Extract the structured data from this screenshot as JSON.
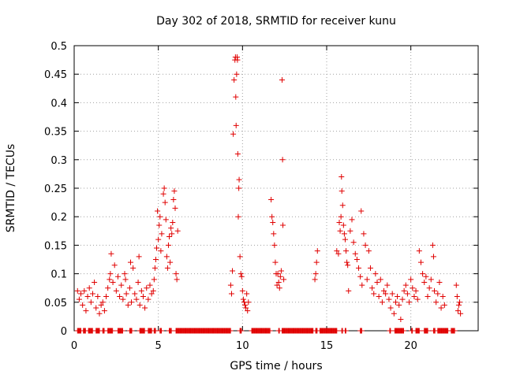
{
  "chart_data": {
    "type": "scatter",
    "title": "Day 302 of 2018, SRMTID for receiver kunu",
    "xlabel": "GPS time / hours",
    "ylabel": "SRMTID / TECUs",
    "xlim": [
      0,
      24
    ],
    "ylim": [
      0,
      0.5
    ],
    "grid": true,
    "marker": "+",
    "series_color": "#e00000",
    "x_ticks": [
      {
        "value": 0,
        "label": "0"
      },
      {
        "value": 5,
        "label": "5"
      },
      {
        "value": 10,
        "label": "10"
      },
      {
        "value": 15,
        "label": "15"
      },
      {
        "value": 20,
        "label": "20"
      }
    ],
    "y_ticks": [
      {
        "value": 0,
        "label": "0"
      },
      {
        "value": 0.05,
        "label": "0.05"
      },
      {
        "value": 0.1,
        "label": "0.1"
      },
      {
        "value": 0.15,
        "label": "0.15"
      },
      {
        "value": 0.2,
        "label": "0.2"
      },
      {
        "value": 0.25,
        "label": "0.25"
      },
      {
        "value": 0.3,
        "label": "0.3"
      },
      {
        "value": 0.35,
        "label": "0.35"
      },
      {
        "value": 0.4,
        "label": "0.4"
      },
      {
        "value": 0.45,
        "label": "0.45"
      },
      {
        "value": 0.5,
        "label": "0.5"
      }
    ],
    "points": [
      [
        0.2,
        0.07
      ],
      [
        0.3,
        0.055
      ],
      [
        0.4,
        0.065
      ],
      [
        0.5,
        0.045
      ],
      [
        0.6,
        0.07
      ],
      [
        0.7,
        0.035
      ],
      [
        0.8,
        0.06
      ],
      [
        0.9,
        0.075
      ],
      [
        1.0,
        0.05
      ],
      [
        1.1,
        0.065
      ],
      [
        1.2,
        0.085
      ],
      [
        1.3,
        0.04
      ],
      [
        1.4,
        0.06
      ],
      [
        1.5,
        0.03
      ],
      [
        1.6,
        0.045
      ],
      [
        1.7,
        0.05
      ],
      [
        1.8,
        0.035
      ],
      [
        1.9,
        0.06
      ],
      [
        2.0,
        0.075
      ],
      [
        2.1,
        0.09
      ],
      [
        2.15,
        0.1
      ],
      [
        2.2,
        0.135
      ],
      [
        2.3,
        0.085
      ],
      [
        2.4,
        0.115
      ],
      [
        2.5,
        0.07
      ],
      [
        2.6,
        0.095
      ],
      [
        2.7,
        0.06
      ],
      [
        2.8,
        0.08
      ],
      [
        2.9,
        0.055
      ],
      [
        3.0,
        0.1
      ],
      [
        3.05,
        0.09
      ],
      [
        3.1,
        0.065
      ],
      [
        3.2,
        0.045
      ],
      [
        3.3,
        0.075
      ],
      [
        3.35,
        0.12
      ],
      [
        3.4,
        0.05
      ],
      [
        3.5,
        0.11
      ],
      [
        3.6,
        0.065
      ],
      [
        3.7,
        0.055
      ],
      [
        3.8,
        0.085
      ],
      [
        3.85,
        0.13
      ],
      [
        3.9,
        0.045
      ],
      [
        4.0,
        0.07
      ],
      [
        4.1,
        0.06
      ],
      [
        4.2,
        0.04
      ],
      [
        4.3,
        0.075
      ],
      [
        4.4,
        0.055
      ],
      [
        4.5,
        0.08
      ],
      [
        4.6,
        0.065
      ],
      [
        4.7,
        0.07
      ],
      [
        4.75,
        0.09
      ],
      [
        4.8,
        0.11
      ],
      [
        4.85,
        0.125
      ],
      [
        4.9,
        0.145
      ],
      [
        4.95,
        0.21
      ],
      [
        5.0,
        0.16
      ],
      [
        5.05,
        0.185
      ],
      [
        5.1,
        0.2
      ],
      [
        5.15,
        0.14
      ],
      [
        5.2,
        0.17
      ],
      [
        5.3,
        0.24
      ],
      [
        5.35,
        0.25
      ],
      [
        5.4,
        0.225
      ],
      [
        5.45,
        0.195
      ],
      [
        5.5,
        0.13
      ],
      [
        5.55,
        0.11
      ],
      [
        5.6,
        0.15
      ],
      [
        5.65,
        0.165
      ],
      [
        5.7,
        0.12
      ],
      [
        5.75,
        0.18
      ],
      [
        5.8,
        0.17
      ],
      [
        5.85,
        0.19
      ],
      [
        5.9,
        0.23
      ],
      [
        5.95,
        0.245
      ],
      [
        6.0,
        0.215
      ],
      [
        6.05,
        0.1
      ],
      [
        6.1,
        0.09
      ],
      [
        6.15,
        0.175
      ],
      [
        9.3,
        0.08
      ],
      [
        9.35,
        0.065
      ],
      [
        9.4,
        0.105
      ],
      [
        9.45,
        0.345
      ],
      [
        9.5,
        0.44
      ],
      [
        9.55,
        0.475
      ],
      [
        9.58,
        0.48
      ],
      [
        9.6,
        0.41
      ],
      [
        9.62,
        0.36
      ],
      [
        9.65,
        0.45
      ],
      [
        9.68,
        0.48
      ],
      [
        9.7,
        0.475
      ],
      [
        9.72,
        0.31
      ],
      [
        9.75,
        0.2
      ],
      [
        9.78,
        0.25
      ],
      [
        9.8,
        0.265
      ],
      [
        9.85,
        0.13
      ],
      [
        9.9,
        0.1
      ],
      [
        9.95,
        0.095
      ],
      [
        10.0,
        0.07
      ],
      [
        10.05,
        0.055
      ],
      [
        10.1,
        0.05
      ],
      [
        10.15,
        0.045
      ],
      [
        10.2,
        0.04
      ],
      [
        10.25,
        0.065
      ],
      [
        10.3,
        0.035
      ],
      [
        10.35,
        0.05
      ],
      [
        11.7,
        0.23
      ],
      [
        11.75,
        0.2
      ],
      [
        11.8,
        0.19
      ],
      [
        11.85,
        0.17
      ],
      [
        11.9,
        0.15
      ],
      [
        11.95,
        0.12
      ],
      [
        12.0,
        0.1
      ],
      [
        12.05,
        0.08
      ],
      [
        12.1,
        0.1
      ],
      [
        12.15,
        0.085
      ],
      [
        12.2,
        0.075
      ],
      [
        12.25,
        0.095
      ],
      [
        12.3,
        0.105
      ],
      [
        12.35,
        0.44
      ],
      [
        12.38,
        0.3
      ],
      [
        12.4,
        0.185
      ],
      [
        12.45,
        0.09
      ],
      [
        14.3,
        0.09
      ],
      [
        14.35,
        0.1
      ],
      [
        14.4,
        0.12
      ],
      [
        14.45,
        0.14
      ],
      [
        15.6,
        0.14
      ],
      [
        15.7,
        0.135
      ],
      [
        15.75,
        0.19
      ],
      [
        15.8,
        0.175
      ],
      [
        15.85,
        0.2
      ],
      [
        15.88,
        0.27
      ],
      [
        15.9,
        0.245
      ],
      [
        15.95,
        0.22
      ],
      [
        16.0,
        0.185
      ],
      [
        16.05,
        0.17
      ],
      [
        16.1,
        0.16
      ],
      [
        16.15,
        0.14
      ],
      [
        16.2,
        0.12
      ],
      [
        16.25,
        0.115
      ],
      [
        16.3,
        0.07
      ],
      [
        16.4,
        0.175
      ],
      [
        16.5,
        0.195
      ],
      [
        16.6,
        0.155
      ],
      [
        16.7,
        0.135
      ],
      [
        16.8,
        0.125
      ],
      [
        16.9,
        0.11
      ],
      [
        17.0,
        0.095
      ],
      [
        17.05,
        0.21
      ],
      [
        17.1,
        0.08
      ],
      [
        17.2,
        0.17
      ],
      [
        17.3,
        0.15
      ],
      [
        17.4,
        0.09
      ],
      [
        17.5,
        0.14
      ],
      [
        17.6,
        0.11
      ],
      [
        17.7,
        0.075
      ],
      [
        17.8,
        0.065
      ],
      [
        17.9,
        0.1
      ],
      [
        18.0,
        0.085
      ],
      [
        18.1,
        0.06
      ],
      [
        18.2,
        0.09
      ],
      [
        18.3,
        0.05
      ],
      [
        18.4,
        0.07
      ],
      [
        18.5,
        0.065
      ],
      [
        18.6,
        0.08
      ],
      [
        18.7,
        0.055
      ],
      [
        18.8,
        0.04
      ],
      [
        18.9,
        0.065
      ],
      [
        19.0,
        0.03
      ],
      [
        19.1,
        0.05
      ],
      [
        19.2,
        0.06
      ],
      [
        19.3,
        0.045
      ],
      [
        19.4,
        0.02
      ],
      [
        19.5,
        0.055
      ],
      [
        19.6,
        0.07
      ],
      [
        19.7,
        0.08
      ],
      [
        19.8,
        0.065
      ],
      [
        19.9,
        0.05
      ],
      [
        20.0,
        0.09
      ],
      [
        20.1,
        0.075
      ],
      [
        20.2,
        0.06
      ],
      [
        20.3,
        0.07
      ],
      [
        20.4,
        0.055
      ],
      [
        20.5,
        0.14
      ],
      [
        20.6,
        0.12
      ],
      [
        20.7,
        0.1
      ],
      [
        20.8,
        0.085
      ],
      [
        20.9,
        0.095
      ],
      [
        21.0,
        0.06
      ],
      [
        21.1,
        0.075
      ],
      [
        21.2,
        0.09
      ],
      [
        21.3,
        0.15
      ],
      [
        21.35,
        0.13
      ],
      [
        21.4,
        0.07
      ],
      [
        21.5,
        0.05
      ],
      [
        21.6,
        0.065
      ],
      [
        21.7,
        0.085
      ],
      [
        21.8,
        0.04
      ],
      [
        21.9,
        0.06
      ],
      [
        22.0,
        0.045
      ],
      [
        22.7,
        0.08
      ],
      [
        22.75,
        0.06
      ],
      [
        22.8,
        0.035
      ],
      [
        22.85,
        0.045
      ],
      [
        22.9,
        0.05
      ],
      [
        22.95,
        0.03
      ]
    ],
    "zero_intervals": [
      [
        0.2,
        0.4
      ],
      [
        0.55,
        0.7
      ],
      [
        0.85,
        1.1
      ],
      [
        1.3,
        1.5
      ],
      [
        1.7,
        1.8
      ],
      [
        2.0,
        2.3
      ],
      [
        2.6,
        2.9
      ],
      [
        3.3,
        3.45
      ],
      [
        3.9,
        4.2
      ],
      [
        4.4,
        4.6
      ],
      [
        4.75,
        4.85
      ],
      [
        5.1,
        5.2
      ],
      [
        5.65,
        5.8
      ],
      [
        6.05,
        9.3
      ],
      [
        9.85,
        9.95
      ],
      [
        10.55,
        11.65
      ],
      [
        12.15,
        12.2
      ],
      [
        12.35,
        14.2
      ],
      [
        14.35,
        14.45
      ],
      [
        14.6,
        15.6
      ],
      [
        15.9,
        15.95
      ],
      [
        16.1,
        16.15
      ],
      [
        17.0,
        17.1
      ],
      [
        18.75,
        18.8
      ],
      [
        19.05,
        19.6
      ],
      [
        20.05,
        20.1
      ],
      [
        20.3,
        20.5
      ],
      [
        20.8,
        21.0
      ],
      [
        21.35,
        21.45
      ],
      [
        21.6,
        22.2
      ],
      [
        22.4,
        22.6
      ]
    ]
  }
}
